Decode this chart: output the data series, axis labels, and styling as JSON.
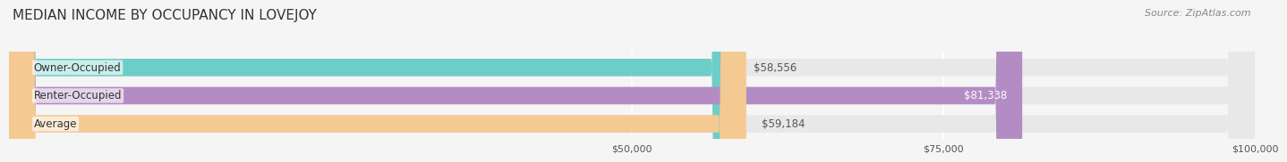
{
  "title": "MEDIAN INCOME BY OCCUPANCY IN LOVEJOY",
  "source": "Source: ZipAtlas.com",
  "categories": [
    "Owner-Occupied",
    "Renter-Occupied",
    "Average"
  ],
  "values": [
    58556,
    81338,
    59184
  ],
  "bar_colors": [
    "#6dcdc8",
    "#b48cc4",
    "#f5c992"
  ],
  "label_colors": [
    "#333333",
    "#ffffff",
    "#333333"
  ],
  "value_labels": [
    "$58,556",
    "$81,338",
    "$59,184"
  ],
  "xmin": 0,
  "xmax": 100000,
  "xticks": [
    50000,
    75000,
    100000
  ],
  "xtick_labels": [
    "$50,000",
    "$75,000",
    "$100,000"
  ],
  "background_color": "#f5f5f5",
  "bar_background_color": "#e8e8e8",
  "title_fontsize": 11,
  "source_fontsize": 8,
  "label_fontsize": 8.5,
  "value_fontsize": 8.5,
  "tick_fontsize": 8
}
